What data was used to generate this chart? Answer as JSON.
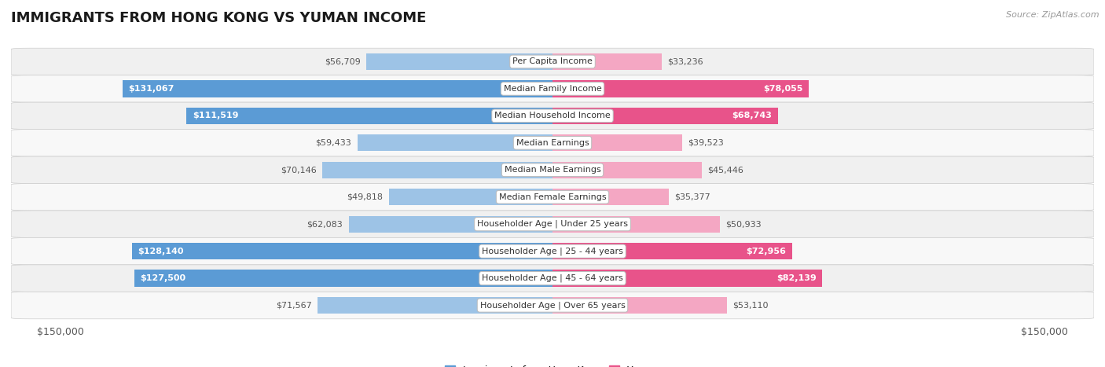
{
  "title": "IMMIGRANTS FROM HONG KONG VS YUMAN INCOME",
  "source": "Source: ZipAtlas.com",
  "categories": [
    "Per Capita Income",
    "Median Family Income",
    "Median Household Income",
    "Median Earnings",
    "Median Male Earnings",
    "Median Female Earnings",
    "Householder Age | Under 25 years",
    "Householder Age | 25 - 44 years",
    "Householder Age | 45 - 64 years",
    "Householder Age | Over 65 years"
  ],
  "hk_values": [
    56709,
    131067,
    111519,
    59433,
    70146,
    49818,
    62083,
    128140,
    127500,
    71567
  ],
  "yuman_values": [
    33236,
    78055,
    68743,
    39523,
    45446,
    35377,
    50933,
    72956,
    82139,
    53110
  ],
  "hk_labels": [
    "$56,709",
    "$131,067",
    "$111,519",
    "$59,433",
    "$70,146",
    "$49,818",
    "$62,083",
    "$128,140",
    "$127,500",
    "$71,567"
  ],
  "yuman_labels": [
    "$33,236",
    "$78,055",
    "$68,743",
    "$39,523",
    "$45,446",
    "$35,377",
    "$50,933",
    "$72,956",
    "$82,139",
    "$53,110"
  ],
  "max_value": 150000,
  "hk_color_full": "#5b9bd5",
  "hk_color_light": "#9dc3e6",
  "yuman_color_full": "#e8538a",
  "yuman_color_light": "#f4a7c3",
  "label_color_full": "#ffffff",
  "label_color_light": "#555555",
  "hk_threshold": 100000,
  "yuman_threshold": 60000,
  "legend_hk": "Immigrants from Hong Kong",
  "legend_yuman": "Yuman",
  "bg_color": "#ffffff",
  "row_bg_alt": "#eeeeee",
  "bar_height": 0.62,
  "title_fontsize": 13,
  "label_fontsize": 8,
  "category_fontsize": 8,
  "axis_label_fontsize": 9
}
